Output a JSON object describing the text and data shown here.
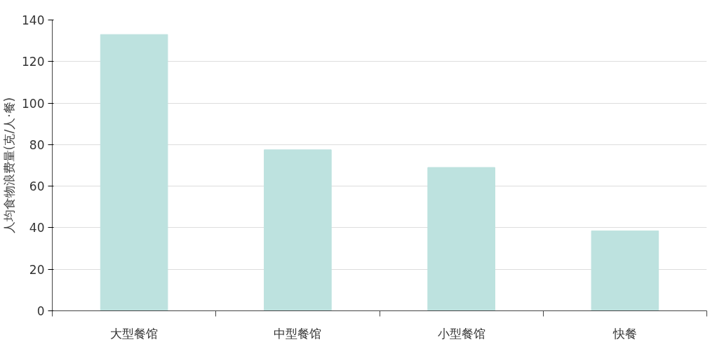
{
  "chart_data": {
    "type": "bar",
    "ylabel": "人均食物浪费量(克/人·餐)",
    "categories": [
      "大型餐馆",
      "中型餐馆",
      "小型餐馆",
      "快餐"
    ],
    "values": [
      133,
      77.5,
      69,
      38.5
    ],
    "color": "#bde2df",
    "ylim": [
      0,
      140
    ],
    "yticks": [
      0,
      20,
      40,
      60,
      80,
      100,
      120,
      140
    ],
    "grid": "y"
  }
}
